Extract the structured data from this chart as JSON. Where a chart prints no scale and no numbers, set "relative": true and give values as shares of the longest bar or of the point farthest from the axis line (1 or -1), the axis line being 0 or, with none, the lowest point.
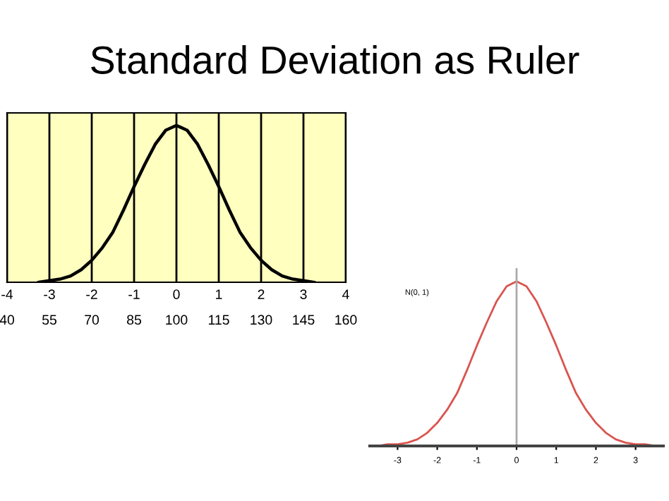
{
  "chart_data": [
    {
      "type": "line",
      "title": "Standard Deviation as Ruler",
      "relative": true,
      "x": [
        -3.25,
        -3,
        -2.75,
        -2.5,
        -2.25,
        -2,
        -1.75,
        -1.5,
        -1.25,
        -1,
        -0.75,
        -0.5,
        -0.25,
        0,
        0.25,
        0.5,
        0.75,
        1,
        1.25,
        1.5,
        1.75,
        2,
        2.25,
        2.5,
        2.75,
        3,
        3.25
      ],
      "series": [
        {
          "color": "#000000",
          "values": [
            0.0,
            0.01,
            0.02,
            0.04,
            0.08,
            0.14,
            0.22,
            0.32,
            0.46,
            0.61,
            0.75,
            0.88,
            0.97,
            1,
            0.97,
            0.88,
            0.75,
            0.61,
            0.46,
            0.32,
            0.22,
            0.14,
            0.08,
            0.04,
            0.02,
            0.01,
            0.0
          ]
        }
      ],
      "xlim": [
        -4,
        4
      ],
      "xticks": [
        -4,
        -3,
        -2,
        -1,
        0,
        1,
        2,
        3,
        4
      ],
      "x2lim": [
        40,
        160
      ],
      "x2ticks": [
        40,
        55,
        70,
        85,
        100,
        115,
        130,
        145,
        160
      ],
      "grid": "x",
      "tick_labels": "x",
      "marker": "none",
      "line_style": "solid",
      "legend": false
    },
    {
      "type": "line",
      "relative": true,
      "x": [
        -3.7,
        -3.5,
        -3.25,
        -3,
        -2.75,
        -2.5,
        -2.25,
        -2,
        -1.75,
        -1.5,
        -1.25,
        -1,
        -0.75,
        -0.5,
        -0.25,
        0,
        0.25,
        0.5,
        0.75,
        1,
        1.25,
        1.5,
        1.75,
        2,
        2.25,
        2.5,
        2.75,
        3,
        3.25,
        3.5,
        3.7
      ],
      "series": [
        {
          "color": "#d9544f",
          "values": [
            0.0,
            0.0,
            0.01,
            0.01,
            0.02,
            0.04,
            0.08,
            0.14,
            0.22,
            0.32,
            0.46,
            0.61,
            0.75,
            0.88,
            0.97,
            1,
            0.97,
            0.88,
            0.75,
            0.61,
            0.46,
            0.32,
            0.22,
            0.14,
            0.08,
            0.04,
            0.02,
            0.01,
            0.01,
            0.0,
            0.0
          ]
        }
      ],
      "xlim": [
        -3.7,
        3.7
      ],
      "xticks": [
        -3,
        -2,
        -1,
        0,
        1,
        2,
        3
      ],
      "ref_lines": [
        {
          "axis": "x",
          "value": 0,
          "color": "#aaaaaa"
        }
      ],
      "annotations": [
        "N(0, 1)"
      ],
      "tick_labels": "x",
      "marker": "none",
      "line_style": "solid",
      "legend": false
    }
  ]
}
